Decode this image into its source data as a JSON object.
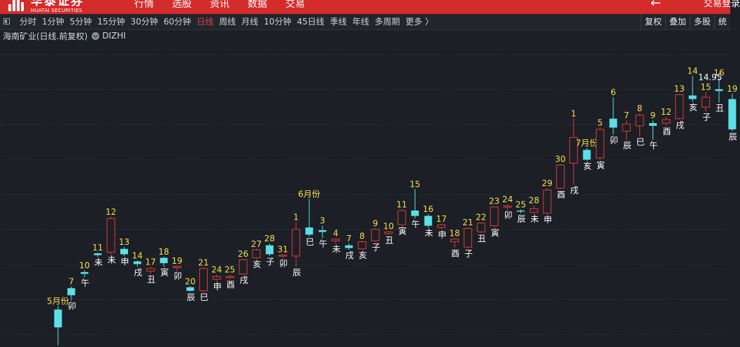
{
  "topbar": {
    "logo_cn": "华泰证券",
    "logo_en": "HUATAI SECURITIES",
    "nav": [
      "行情",
      "选股",
      "资讯",
      "数据",
      "交易"
    ],
    "back_icon": "arrow-left-icon",
    "login": "交易登录"
  },
  "toolbar": {
    "periods": [
      "分时",
      "1分钟",
      "5分钟",
      "15分钟",
      "30分钟",
      "60分钟",
      "日线",
      "周线",
      "月线",
      "10分钟",
      "45日线",
      "季线",
      "年线",
      "多周期",
      "更多 〉"
    ],
    "active_period": "日线",
    "right_buttons": [
      "复权",
      "叠加",
      "多股",
      "统"
    ]
  },
  "info": {
    "title": "海南矿业(日线.前复权)",
    "indicator": "DIZHI"
  },
  "chart_data": {
    "type": "candlestick",
    "label": "14.95",
    "colors": {
      "up": "#e53935",
      "down": "#5ce0e8",
      "day_label": "#f5e04a",
      "branch_label": "#ffffff",
      "grid": "#3a4150"
    },
    "candles": [
      {
        "o": 1.5,
        "c": 0.5,
        "h": 1.7,
        "l": -0.5,
        "t": "5月份",
        "b": ""
      },
      {
        "o": 2.7,
        "c": 2.3,
        "h": 2.8,
        "l": 2.0,
        "t": "7",
        "b": "卯"
      },
      {
        "o": 3.6,
        "c": 3.5,
        "h": 3.7,
        "l": 3.3,
        "t": "10",
        "b": "午"
      },
      {
        "o": 4.65,
        "c": 4.55,
        "h": 4.7,
        "l": 4.45,
        "t": "11",
        "b": "未"
      },
      {
        "o": 4.7,
        "c": 6.6,
        "h": 6.7,
        "l": 4.6,
        "t": "12",
        "b": "未"
      },
      {
        "o": 4.9,
        "c": 4.6,
        "h": 5.0,
        "l": 4.5,
        "t": "13",
        "b": "申"
      },
      {
        "o": 4.2,
        "c": 4.05,
        "h": 4.25,
        "l": 3.9,
        "t": "14",
        "b": "戌"
      },
      {
        "o": 3.65,
        "c": 3.8,
        "h": 3.9,
        "l": 3.5,
        "t": "17",
        "b": "丑"
      },
      {
        "o": 4.4,
        "c": 4.1,
        "h": 4.45,
        "l": 3.9,
        "t": "18",
        "b": "寅"
      },
      {
        "o": 3.85,
        "c": 3.92,
        "h": 3.95,
        "l": 3.7,
        "t": "19",
        "b": "卯"
      },
      {
        "o": 2.75,
        "c": 2.55,
        "h": 2.8,
        "l": 2.5,
        "t": "20",
        "b": "辰"
      },
      {
        "o": 2.55,
        "c": 3.8,
        "h": 3.85,
        "l": 2.5,
        "t": "21",
        "b": "巳"
      },
      {
        "o": 3.2,
        "c": 3.35,
        "h": 3.45,
        "l": 3.1,
        "t": "24",
        "b": "申"
      },
      {
        "o": 3.3,
        "c": 3.35,
        "h": 3.45,
        "l": 3.2,
        "t": "25",
        "b": "酉"
      },
      {
        "o": 3.5,
        "c": 4.3,
        "h": 4.35,
        "l": 3.45,
        "t": "26",
        "b": "戌"
      },
      {
        "o": 4.4,
        "c": 4.85,
        "h": 4.9,
        "l": 4.35,
        "t": "27",
        "b": "亥"
      },
      {
        "o": 5.1,
        "c": 4.6,
        "h": 5.2,
        "l": 4.5,
        "t": "28",
        "b": "子"
      },
      {
        "o": 4.5,
        "c": 4.55,
        "h": 4.6,
        "l": 4.4,
        "t": "31",
        "b": "卯"
      },
      {
        "o": 4.5,
        "c": 6.0,
        "h": 6.4,
        "l": 3.9,
        "t": "1",
        "b": "辰"
      },
      {
        "o": 6.1,
        "c": 5.7,
        "h": 7.7,
        "l": 5.6,
        "t": "6月份",
        "b": "巳"
      },
      {
        "o": 5.95,
        "c": 5.85,
        "h": 6.2,
        "l": 5.5,
        "t": "3",
        "b": "午"
      },
      {
        "o": 5.35,
        "c": 5.45,
        "h": 5.5,
        "l": 5.2,
        "t": "4",
        "b": "未"
      },
      {
        "o": 5.1,
        "c": 4.95,
        "h": 5.2,
        "l": 4.85,
        "t": "7",
        "b": "戌"
      },
      {
        "o": 4.9,
        "c": 5.3,
        "h": 5.35,
        "l": 4.85,
        "t": "8",
        "b": "亥"
      },
      {
        "o": 5.35,
        "c": 6.0,
        "h": 6.05,
        "l": 5.3,
        "t": "9",
        "b": "子"
      },
      {
        "o": 5.75,
        "c": 5.85,
        "h": 5.9,
        "l": 5.7,
        "t": "10",
        "b": "丑"
      },
      {
        "o": 6.25,
        "c": 7.05,
        "h": 7.1,
        "l": 6.2,
        "t": "11",
        "b": "寅"
      },
      {
        "o": 7.05,
        "c": 6.75,
        "h": 8.25,
        "l": 6.6,
        "t": "15",
        "b": "午"
      },
      {
        "o": 6.75,
        "c": 6.2,
        "h": 6.85,
        "l": 6.1,
        "t": "16",
        "b": "未"
      },
      {
        "o": 6.1,
        "c": 6.25,
        "h": 6.3,
        "l": 6.0,
        "t": "17",
        "b": "申"
      },
      {
        "o": 5.3,
        "c": 5.45,
        "h": 5.5,
        "l": 4.95,
        "t": "18",
        "b": "酉"
      },
      {
        "o": 5.0,
        "c": 6.05,
        "h": 6.1,
        "l": 4.95,
        "t": "21",
        "b": "子"
      },
      {
        "o": 5.85,
        "c": 6.35,
        "h": 6.4,
        "l": 5.8,
        "t": "22",
        "b": "丑"
      },
      {
        "o": 6.2,
        "c": 7.25,
        "h": 7.3,
        "l": 6.1,
        "t": "23",
        "b": "寅"
      },
      {
        "o": 7.25,
        "c": 7.3,
        "h": 7.4,
        "l": 7.1,
        "t": "24",
        "b": "卯"
      },
      {
        "o": 7.05,
        "c": 7.0,
        "h": 7.1,
        "l": 6.9,
        "t": "25",
        "b": "辰"
      },
      {
        "o": 6.95,
        "c": 7.15,
        "h": 7.35,
        "l": 6.9,
        "t": "28",
        "b": "未"
      },
      {
        "o": 6.9,
        "c": 8.2,
        "h": 8.3,
        "l": 6.85,
        "t": "29",
        "b": "申"
      },
      {
        "o": 8.3,
        "c": 9.6,
        "h": 9.65,
        "l": 8.25,
        "t": "30",
        "b": "酉"
      },
      {
        "o": 9.7,
        "c": 11.15,
        "h": 12.2,
        "l": 8.5,
        "t": "1",
        "b": "戌"
      },
      {
        "o": 10.45,
        "c": 9.9,
        "h": 10.55,
        "l": 9.85,
        "t": "7月份",
        "b": "亥"
      },
      {
        "o": 10.0,
        "c": 11.6,
        "h": 11.7,
        "l": 9.9,
        "t": "5",
        "b": "寅"
      },
      {
        "o": 12.2,
        "c": 11.7,
        "h": 13.4,
        "l": 11.3,
        "t": "6",
        "b": "卯"
      },
      {
        "o": 11.5,
        "c": 11.9,
        "h": 12.1,
        "l": 11.0,
        "t": "7",
        "b": "辰"
      },
      {
        "o": 11.8,
        "c": 12.4,
        "h": 12.5,
        "l": 11.2,
        "t": "8",
        "b": "巳"
      },
      {
        "o": 11.95,
        "c": 11.8,
        "h": 12.1,
        "l": 11.0,
        "t": "9",
        "b": "午"
      },
      {
        "o": 11.95,
        "c": 12.15,
        "h": 12.3,
        "l": 11.8,
        "t": "12",
        "b": "酉"
      },
      {
        "o": 12.2,
        "c": 13.55,
        "h": 13.6,
        "l": 12.15,
        "t": "13",
        "b": "戌"
      },
      {
        "o": 13.5,
        "c": 13.3,
        "h": 14.6,
        "l": 13.15,
        "t": "14",
        "b": "亥"
      },
      {
        "o": 12.85,
        "c": 13.4,
        "h": 13.7,
        "l": 12.6,
        "t": "15",
        "b": "子"
      },
      {
        "o": 13.85,
        "c": 13.75,
        "h": 14.5,
        "l": 13.1,
        "t": "16",
        "b": "丑"
      },
      {
        "o": 13.3,
        "c": 11.6,
        "h": 13.6,
        "l": 11.5,
        "t": "19",
        "b": "辰"
      }
    ]
  }
}
